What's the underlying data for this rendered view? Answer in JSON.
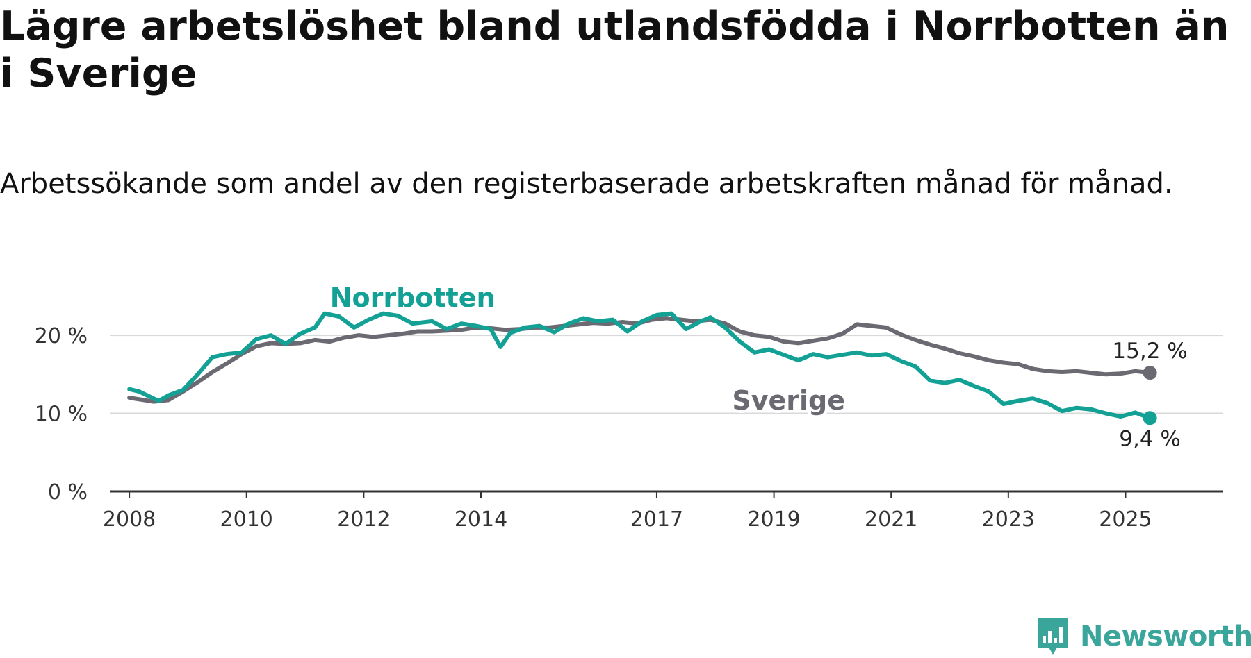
{
  "title": "Lägre arbetslöshet bland utlandsfödda i Norrbotten än i Sverige",
  "subtitle": "Arbetssökande som andel av den registerbaserade arbetskraften månad för månad.",
  "brand": {
    "name": "Newsworthy",
    "icon": "newsworthy-logo-icon",
    "color": "#3aa59a"
  },
  "chart_data": {
    "type": "line",
    "x_axis": {
      "type": "time",
      "range": [
        "2007-09",
        "2026-09"
      ],
      "ticks": [
        "2008",
        "2010",
        "2012",
        "2014",
        "2017",
        "2019",
        "2021",
        "2023",
        "2025"
      ]
    },
    "y_axis": {
      "range": [
        0,
        22.5
      ],
      "ticks": [
        0,
        10,
        20
      ],
      "tick_labels": [
        "0 %",
        "10 %",
        "20 %"
      ],
      "unit": "%"
    },
    "grid": true,
    "series": [
      {
        "name": "Sverige",
        "color": "#6b6a72",
        "label_at": "2019-04",
        "end_label": "15,2 %",
        "points": [
          [
            "2008-01",
            12.0
          ],
          [
            "2008-04",
            11.7
          ],
          [
            "2008-06",
            11.5
          ],
          [
            "2008-09",
            11.7
          ],
          [
            "2008-12",
            12.8
          ],
          [
            "2009-03",
            14.0
          ],
          [
            "2009-06",
            15.3
          ],
          [
            "2009-09",
            16.4
          ],
          [
            "2009-12",
            17.6
          ],
          [
            "2010-03",
            18.6
          ],
          [
            "2010-06",
            19.0
          ],
          [
            "2010-09",
            18.9
          ],
          [
            "2010-12",
            19.0
          ],
          [
            "2011-03",
            19.4
          ],
          [
            "2011-06",
            19.2
          ],
          [
            "2011-09",
            19.7
          ],
          [
            "2011-12",
            20.0
          ],
          [
            "2012-03",
            19.8
          ],
          [
            "2012-06",
            20.0
          ],
          [
            "2012-09",
            20.2
          ],
          [
            "2012-12",
            20.5
          ],
          [
            "2013-03",
            20.5
          ],
          [
            "2013-06",
            20.6
          ],
          [
            "2013-09",
            20.7
          ],
          [
            "2013-12",
            21.0
          ],
          [
            "2014-03",
            20.9
          ],
          [
            "2014-06",
            20.7
          ],
          [
            "2014-09",
            20.8
          ],
          [
            "2014-12",
            21.0
          ],
          [
            "2015-03",
            21.0
          ],
          [
            "2015-06",
            21.2
          ],
          [
            "2015-09",
            21.4
          ],
          [
            "2015-12",
            21.6
          ],
          [
            "2016-03",
            21.5
          ],
          [
            "2016-06",
            21.7
          ],
          [
            "2016-09",
            21.5
          ],
          [
            "2016-12",
            22.0
          ],
          [
            "2017-03",
            22.2
          ],
          [
            "2017-06",
            22.0
          ],
          [
            "2017-09",
            21.8
          ],
          [
            "2017-12",
            22.0
          ],
          [
            "2018-03",
            21.5
          ],
          [
            "2018-06",
            20.5
          ],
          [
            "2018-09",
            20.0
          ],
          [
            "2018-12",
            19.8
          ],
          [
            "2019-03",
            19.2
          ],
          [
            "2019-06",
            19.0
          ],
          [
            "2019-09",
            19.3
          ],
          [
            "2019-12",
            19.6
          ],
          [
            "2020-03",
            20.2
          ],
          [
            "2020-06",
            21.4
          ],
          [
            "2020-09",
            21.2
          ],
          [
            "2020-12",
            21.0
          ],
          [
            "2021-03",
            20.1
          ],
          [
            "2021-06",
            19.4
          ],
          [
            "2021-09",
            18.8
          ],
          [
            "2021-12",
            18.3
          ],
          [
            "2022-03",
            17.7
          ],
          [
            "2022-06",
            17.3
          ],
          [
            "2022-09",
            16.8
          ],
          [
            "2022-12",
            16.5
          ],
          [
            "2023-03",
            16.3
          ],
          [
            "2023-06",
            15.7
          ],
          [
            "2023-09",
            15.4
          ],
          [
            "2023-12",
            15.3
          ],
          [
            "2024-03",
            15.4
          ],
          [
            "2024-06",
            15.2
          ],
          [
            "2024-09",
            15.0
          ],
          [
            "2024-12",
            15.1
          ],
          [
            "2025-03",
            15.4
          ],
          [
            "2025-06",
            15.2
          ]
        ]
      },
      {
        "name": "Norrbotten",
        "color": "#14a195",
        "label_at": "2012-11",
        "end_label": "9,4 %",
        "points": [
          [
            "2008-01",
            13.1
          ],
          [
            "2008-03",
            12.8
          ],
          [
            "2008-05",
            12.2
          ],
          [
            "2008-07",
            11.6
          ],
          [
            "2008-09",
            12.3
          ],
          [
            "2008-12",
            13.0
          ],
          [
            "2009-03",
            15.0
          ],
          [
            "2009-06",
            17.2
          ],
          [
            "2009-09",
            17.6
          ],
          [
            "2009-12",
            17.8
          ],
          [
            "2010-03",
            19.5
          ],
          [
            "2010-06",
            20.0
          ],
          [
            "2010-09",
            18.9
          ],
          [
            "2010-12",
            20.2
          ],
          [
            "2011-03",
            21.0
          ],
          [
            "2011-05",
            22.8
          ],
          [
            "2011-08",
            22.4
          ],
          [
            "2011-11",
            21.0
          ],
          [
            "2012-02",
            22.0
          ],
          [
            "2012-05",
            22.8
          ],
          [
            "2012-08",
            22.5
          ],
          [
            "2012-11",
            21.5
          ],
          [
            "2013-03",
            21.8
          ],
          [
            "2013-06",
            20.8
          ],
          [
            "2013-09",
            21.5
          ],
          [
            "2013-12",
            21.2
          ],
          [
            "2014-03",
            20.8
          ],
          [
            "2014-05",
            18.5
          ],
          [
            "2014-07",
            20.3
          ],
          [
            "2014-10",
            21.0
          ],
          [
            "2015-01",
            21.2
          ],
          [
            "2015-04",
            20.4
          ],
          [
            "2015-07",
            21.5
          ],
          [
            "2015-10",
            22.2
          ],
          [
            "2016-01",
            21.8
          ],
          [
            "2016-04",
            22.0
          ],
          [
            "2016-07",
            20.5
          ],
          [
            "2016-10",
            21.8
          ],
          [
            "2017-01",
            22.6
          ],
          [
            "2017-04",
            22.8
          ],
          [
            "2017-07",
            20.8
          ],
          [
            "2017-10",
            21.8
          ],
          [
            "2017-12",
            22.3
          ],
          [
            "2018-03",
            21.0
          ],
          [
            "2018-06",
            19.2
          ],
          [
            "2018-09",
            17.8
          ],
          [
            "2018-12",
            18.2
          ],
          [
            "2019-03",
            17.5
          ],
          [
            "2019-06",
            16.8
          ],
          [
            "2019-09",
            17.6
          ],
          [
            "2019-12",
            17.2
          ],
          [
            "2020-03",
            17.5
          ],
          [
            "2020-06",
            17.8
          ],
          [
            "2020-09",
            17.4
          ],
          [
            "2020-12",
            17.6
          ],
          [
            "2021-03",
            16.7
          ],
          [
            "2021-06",
            16.0
          ],
          [
            "2021-09",
            14.2
          ],
          [
            "2021-12",
            13.9
          ],
          [
            "2022-03",
            14.3
          ],
          [
            "2022-06",
            13.5
          ],
          [
            "2022-09",
            12.8
          ],
          [
            "2022-12",
            11.2
          ],
          [
            "2023-03",
            11.6
          ],
          [
            "2023-06",
            11.9
          ],
          [
            "2023-09",
            11.3
          ],
          [
            "2023-12",
            10.3
          ],
          [
            "2024-03",
            10.7
          ],
          [
            "2024-06",
            10.5
          ],
          [
            "2024-09",
            10.0
          ],
          [
            "2024-12",
            9.6
          ],
          [
            "2025-03",
            10.1
          ],
          [
            "2025-06",
            9.4
          ]
        ]
      }
    ]
  }
}
